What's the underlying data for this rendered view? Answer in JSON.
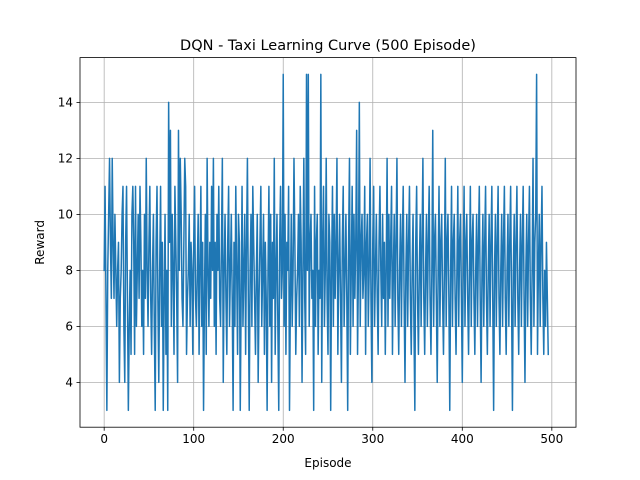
{
  "chart_data": {
    "type": "line",
    "title": "DQN - Taxi Learning Curve (500 Episode)",
    "xlabel": "Episode",
    "ylabel": "Reward",
    "xlim": [
      -27,
      527
    ],
    "ylim": [
      2.4,
      15.6
    ],
    "xticks": [
      0,
      100,
      200,
      300,
      400,
      500
    ],
    "yticks": [
      4,
      6,
      8,
      10,
      12,
      14
    ],
    "grid": true,
    "line_color": "#1f77b4",
    "series": [
      {
        "x_start": 0,
        "x_step": 1,
        "values": [
          8,
          11,
          7,
          3,
          8,
          10,
          12,
          9,
          7,
          12,
          9,
          7,
          10,
          8,
          6,
          8,
          9,
          4,
          7,
          8,
          10,
          11,
          6,
          4,
          9,
          11,
          7,
          3,
          6,
          8,
          5,
          10,
          11,
          9,
          5,
          11,
          6,
          8,
          10,
          7,
          11,
          9,
          6,
          8,
          5,
          10,
          7,
          12,
          8,
          6,
          9,
          11,
          7,
          5,
          8,
          10,
          6,
          3,
          9,
          11,
          7,
          4,
          8,
          11,
          6,
          9,
          3,
          7,
          10,
          5,
          8,
          3,
          14,
          9,
          13,
          6,
          10,
          8,
          5,
          11,
          9,
          7,
          4,
          13,
          8,
          12,
          10,
          7,
          6,
          9,
          12,
          11,
          5,
          7,
          8,
          10,
          6,
          9,
          8,
          5,
          9,
          11,
          7,
          6,
          8,
          10,
          5,
          8,
          11,
          6,
          9,
          3,
          7,
          10,
          5,
          12,
          8,
          6,
          9,
          7,
          11,
          8,
          12,
          6,
          9,
          5,
          10,
          8,
          11,
          7,
          6,
          9,
          12,
          4,
          8,
          10,
          7,
          5,
          9,
          11,
          6,
          8,
          10,
          7,
          3,
          9,
          6,
          11,
          8,
          5,
          10,
          9,
          3,
          7,
          11,
          6,
          8,
          10,
          5,
          9,
          12,
          7,
          3,
          8,
          10,
          6,
          11,
          9,
          7,
          5,
          8,
          10,
          4,
          7,
          9,
          11,
          6,
          8,
          10,
          5,
          9,
          7,
          3,
          8,
          11,
          6,
          10,
          4,
          9,
          7,
          12,
          5,
          8,
          10,
          6,
          3,
          9,
          11,
          7,
          8,
          15,
          6,
          10,
          5,
          9,
          8,
          11,
          3,
          7,
          10,
          6,
          8,
          12,
          9,
          5,
          7,
          8,
          10,
          6,
          11,
          9,
          4,
          8,
          12,
          7,
          5,
          15,
          8,
          15,
          6,
          9,
          10,
          7,
          8,
          3,
          11,
          6,
          9,
          10,
          5,
          8,
          7,
          15,
          4,
          9,
          11,
          6,
          8,
          12,
          7,
          5,
          10,
          9,
          3,
          8,
          11,
          6,
          10,
          7,
          9,
          12,
          5,
          8,
          10,
          7,
          4,
          9,
          11,
          6,
          8,
          10,
          7,
          3,
          9,
          12,
          5,
          8,
          11,
          6,
          10,
          7,
          9,
          13,
          5,
          8,
          14,
          6,
          9,
          10,
          7,
          8,
          11,
          5,
          9,
          10,
          6,
          8,
          12,
          7,
          4,
          9,
          11,
          6,
          8,
          10,
          7,
          5,
          9,
          11,
          8,
          6,
          10,
          7,
          9,
          5,
          8,
          12,
          6,
          10,
          7,
          9,
          11,
          5,
          8,
          10,
          6,
          9,
          12,
          7,
          5,
          8,
          10,
          6,
          9,
          11,
          7,
          4,
          8,
          10,
          6,
          9,
          11,
          7,
          5,
          8,
          10,
          6,
          3,
          9,
          11,
          7,
          5,
          8,
          10,
          6,
          9,
          12,
          7,
          5,
          8,
          10,
          6,
          9,
          11,
          7,
          5,
          8,
          13,
          6,
          9,
          10,
          7,
          4,
          8,
          11,
          6,
          9,
          10,
          7,
          5,
          8,
          12,
          6,
          9,
          10,
          7,
          3,
          8,
          11,
          6,
          9,
          10,
          7,
          5,
          8,
          11,
          6,
          9,
          10,
          7,
          4,
          8,
          11,
          6,
          9,
          10,
          7,
          5,
          8,
          11,
          6,
          9,
          10,
          7,
          5,
          8,
          10,
          6,
          9,
          11,
          7,
          4,
          8,
          10,
          6,
          9,
          11,
          7,
          5,
          8,
          10,
          6,
          9,
          11,
          7,
          3,
          8,
          10,
          6,
          9,
          11,
          7,
          5,
          8,
          10,
          6,
          9,
          11,
          7,
          5,
          8,
          10,
          6,
          9,
          11,
          7,
          3,
          8,
          10,
          6,
          9,
          11,
          7,
          5,
          8,
          10,
          6,
          9,
          11,
          7,
          4,
          8,
          10,
          6,
          9,
          11,
          7,
          5,
          8,
          12,
          6,
          9,
          10,
          15,
          5,
          8,
          10,
          6,
          9,
          11,
          7,
          5,
          8,
          6,
          9,
          7,
          5
        ]
      }
    ]
  }
}
